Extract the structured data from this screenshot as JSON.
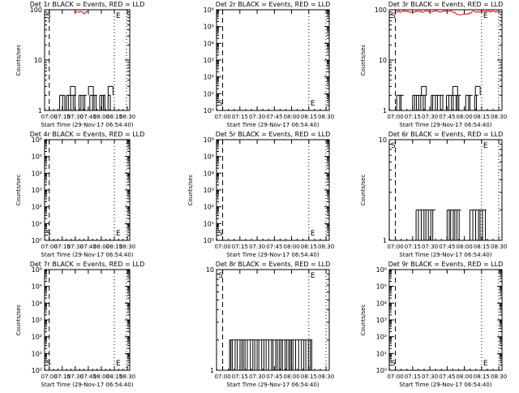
{
  "page": {
    "background": "#ffffff",
    "foreground": "#000000",
    "lld_color": "#ff0000"
  },
  "chart_data": [
    {
      "type": "line",
      "title": "Det 1r BLACK = Events, RED = LLD",
      "xlabel": "Start Time (29-Nov-17 06:54:40)",
      "ylabel": "Counts/sec",
      "x_tick_labels": [
        "07:00",
        "07:15",
        "07:30",
        "07:45",
        "08:00",
        "08:15",
        "08:30"
      ],
      "y_scale": "log",
      "ylim": [
        1,
        100
      ],
      "y_tick_labels": [
        {
          "v": 1,
          "t": "1"
        },
        {
          "v": 10,
          "t": "10"
        },
        {
          "v": 100,
          "t": "100"
        }
      ],
      "marker_labels": [
        "S",
        "E"
      ],
      "events": {
        "color": "#000000",
        "level": 2,
        "spikes": 3,
        "segments": [
          [
            7.2,
            7.3
          ],
          [
            7.33,
            7.52
          ],
          [
            7.57,
            7.72
          ],
          [
            7.78,
            7.92
          ],
          [
            7.97,
            8.08
          ],
          [
            8.13,
            8.18
          ]
        ]
      },
      "lld": {
        "color": "#ff0000",
        "level": 100,
        "segments": [
          [
            7.48,
            7.78
          ]
        ]
      }
    },
    {
      "type": "line",
      "title": "Det 2r BLACK = Events, RED = LLD",
      "xlabel": "Start Time (29-Nov-17 06:54:40)",
      "ylabel": "",
      "x_tick_labels": [
        "07:00",
        "07:15",
        "07:30",
        "07:45",
        "08:00",
        "08:15",
        "08:30"
      ],
      "y_scale": "log",
      "ylim": [
        1,
        1000000
      ],
      "y_tick_labels": [
        {
          "v": 1,
          "t": "10⁰"
        },
        {
          "v": 10,
          "t": "10¹"
        },
        {
          "v": 100,
          "t": "10²"
        },
        {
          "v": 1000,
          "t": "10³"
        },
        {
          "v": 10000,
          "t": "10⁴"
        },
        {
          "v": 100000,
          "t": "10⁵"
        },
        {
          "v": 1000000,
          "t": "10⁶"
        }
      ],
      "marker_labels": [
        "S",
        "E"
      ],
      "events": null,
      "lld": null
    },
    {
      "type": "line",
      "title": "Det 3r BLACK = Events, RED = LLD",
      "xlabel": "Start Time (29-Nov-17 06:54:40)",
      "ylabel": "Counts/sec",
      "x_tick_labels": [
        "07:00",
        "07:15",
        "07:30",
        "07:45",
        "08:00",
        "08:15",
        "08:30"
      ],
      "y_scale": "log",
      "ylim": [
        1,
        100
      ],
      "y_tick_labels": [
        {
          "v": 1,
          "t": "1"
        },
        {
          "v": 10,
          "t": "10"
        },
        {
          "v": 100,
          "t": "100"
        }
      ],
      "marker_labels": [
        "S",
        "E"
      ],
      "events": {
        "color": "#000000",
        "level": 2,
        "spikes": 3,
        "segments": [
          [
            7.02,
            7.12
          ],
          [
            7.25,
            7.45
          ],
          [
            7.52,
            7.7
          ],
          [
            7.74,
            7.95
          ],
          [
            8.02,
            8.12
          ],
          [
            8.15,
            8.2
          ]
        ]
      },
      "lld": {
        "color": "#ff0000",
        "level": 100,
        "segments": [
          [
            7.0,
            8.5
          ]
        ]
      }
    },
    {
      "type": "line",
      "title": "Det 4r BLACK = Events, RED = LLD",
      "xlabel": "Start Time (29-Nov-17 06:54:40)",
      "ylabel": "Counts/sec",
      "x_tick_labels": [
        "07:00",
        "07:15",
        "07:30",
        "07:45",
        "08:00",
        "08:15",
        "08:30"
      ],
      "y_scale": "log",
      "ylim": [
        1,
        1000000
      ],
      "y_tick_labels": [
        {
          "v": 1,
          "t": "10⁰"
        },
        {
          "v": 10,
          "t": "10¹"
        },
        {
          "v": 100,
          "t": "10²"
        },
        {
          "v": 1000,
          "t": "10³"
        },
        {
          "v": 10000,
          "t": "10⁴"
        },
        {
          "v": 100000,
          "t": "10⁵"
        },
        {
          "v": 1000000,
          "t": "10⁶"
        }
      ],
      "marker_labels": [
        "S",
        "E"
      ],
      "events": null,
      "lld": null
    },
    {
      "type": "line",
      "title": "Det 5r BLACK = Events, RED = LLD",
      "xlabel": "Start Time (29-Nov-17 06:54:40)",
      "ylabel": "Counts/sec",
      "x_tick_labels": [
        "07:00",
        "07:15",
        "07:30",
        "07:45",
        "08:00",
        "08:15",
        "08:30"
      ],
      "y_scale": "log",
      "ylim": [
        1,
        1000000
      ],
      "y_tick_labels": [
        {
          "v": 1,
          "t": "10⁰"
        },
        {
          "v": 10,
          "t": "10¹"
        },
        {
          "v": 100,
          "t": "10²"
        },
        {
          "v": 1000,
          "t": "10³"
        },
        {
          "v": 10000,
          "t": "10⁴"
        },
        {
          "v": 100000,
          "t": "10⁵"
        },
        {
          "v": 1000000,
          "t": "10⁶"
        }
      ],
      "marker_labels": [
        "S",
        "E"
      ],
      "events": null,
      "lld": null
    },
    {
      "type": "line",
      "title": "Det 6r BLACK = Events, RED = LLD",
      "xlabel": "Start Time (29-Nov-17 06:54:40)",
      "ylabel": "Counts/sec",
      "x_tick_labels": [
        "07:00",
        "07:15",
        "07:30",
        "07:45",
        "08:00",
        "08:15",
        "08:30"
      ],
      "y_scale": "log",
      "ylim": [
        1,
        10
      ],
      "y_tick_labels": [
        {
          "v": 1,
          "t": "1"
        },
        {
          "v": 10,
          "t": "10"
        }
      ],
      "marker_labels": [
        "S",
        "E"
      ],
      "events": {
        "color": "#000000",
        "level": 2,
        "spikes": 0,
        "segments": [
          [
            7.3,
            7.58
          ],
          [
            7.75,
            7.95
          ],
          [
            8.08,
            8.32
          ]
        ]
      },
      "lld": null
    },
    {
      "type": "line",
      "title": "Det 7r BLACK = Events, RED = LLD",
      "xlabel": "Start Time (29-Nov-17 06:54:40)",
      "ylabel": "Counts/sec",
      "x_tick_labels": [
        "07:00",
        "07:15",
        "07:30",
        "07:45",
        "08:00",
        "08:15",
        "08:30"
      ],
      "y_scale": "log",
      "ylim": [
        1,
        1000000
      ],
      "y_tick_labels": [
        {
          "v": 1,
          "t": "10⁰"
        },
        {
          "v": 10,
          "t": "10¹"
        },
        {
          "v": 100,
          "t": "10²"
        },
        {
          "v": 1000,
          "t": "10³"
        },
        {
          "v": 10000,
          "t": "10⁴"
        },
        {
          "v": 100000,
          "t": "10⁵"
        },
        {
          "v": 1000000,
          "t": "10⁶"
        }
      ],
      "marker_labels": [
        "S",
        "E"
      ],
      "events": null,
      "lld": null
    },
    {
      "type": "line",
      "title": "Det 8r BLACK = Events, RED = LLD",
      "xlabel": "Start Time (29-Nov-17 06:54:40)",
      "ylabel": "",
      "x_tick_labels": [
        "07:00",
        "07:15",
        "07:30",
        "07:45",
        "08:00",
        "08:15",
        "08:30"
      ],
      "y_scale": "log",
      "ylim": [
        1,
        10
      ],
      "y_tick_labels": [
        {
          "v": 1,
          "t": "1"
        },
        {
          "v": 10,
          "t": "10"
        }
      ],
      "marker_labels": [
        "S",
        "E"
      ],
      "events": {
        "color": "#000000",
        "level": 2,
        "spikes": 0,
        "segments": [
          [
            7.1,
            8.3
          ]
        ]
      },
      "lld": null
    },
    {
      "type": "line",
      "title": "Det 9r BLACK = Events, RED = LLD",
      "xlabel": "Start Time (29-Nov-17 06:54:40)",
      "ylabel": "Counts/sec",
      "x_tick_labels": [
        "07:00",
        "07:15",
        "07:30",
        "07:45",
        "08:00",
        "08:15",
        "08:30"
      ],
      "y_scale": "log",
      "ylim": [
        1,
        1000000
      ],
      "y_tick_labels": [
        {
          "v": 1,
          "t": "10⁰"
        },
        {
          "v": 10,
          "t": "10¹"
        },
        {
          "v": 100,
          "t": "10²"
        },
        {
          "v": 1000,
          "t": "10³"
        },
        {
          "v": 10000,
          "t": "10⁴"
        },
        {
          "v": 100000,
          "t": "10⁵"
        },
        {
          "v": 1000000,
          "t": "10⁶"
        }
      ],
      "marker_labels": [
        "S",
        "E"
      ],
      "events": null,
      "lld": null
    }
  ]
}
